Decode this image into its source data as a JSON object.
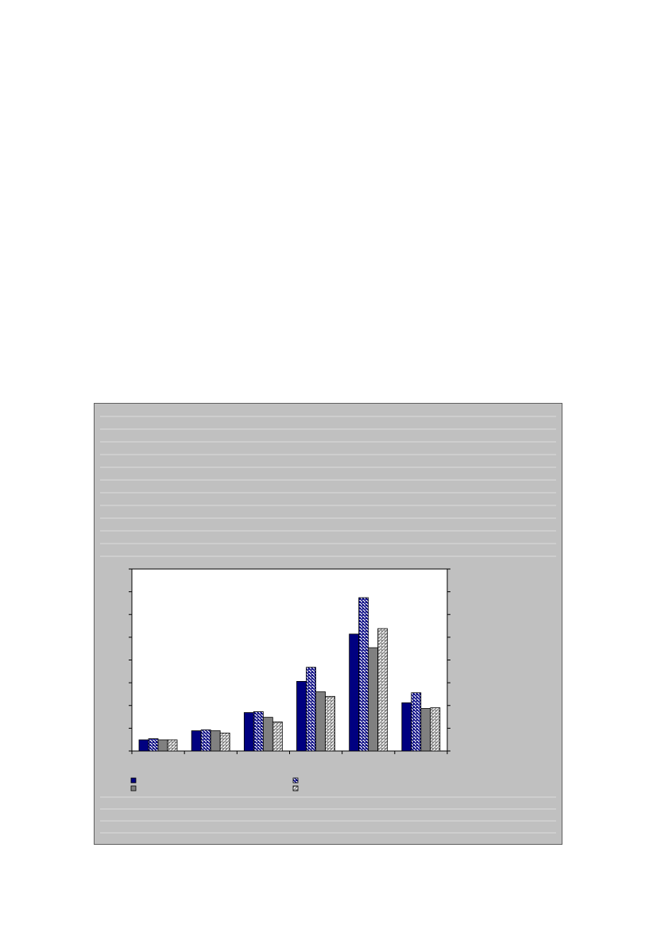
{
  "chart_data": {
    "type": "bar",
    "title": "",
    "xlabel": "",
    "ylabel": "",
    "categories": [
      "",
      "",
      "",
      "",
      "",
      ""
    ],
    "ylim": [
      0,
      8
    ],
    "grid": false,
    "legend_position": "bottom",
    "series": [
      {
        "values": [
          0.49,
          0.89,
          1.69,
          3.06,
          5.14,
          2.12
        ],
        "color": "#000080",
        "pattern": "solid"
      },
      {
        "values": [
          0.54,
          0.93,
          1.73,
          3.68,
          6.74,
          2.56
        ],
        "color": "#000080",
        "pattern": "diagonal-hatch"
      },
      {
        "values": [
          0.49,
          0.89,
          1.48,
          2.6,
          4.54,
          1.87
        ],
        "color": "#808080",
        "pattern": "solid"
      },
      {
        "values": [
          0.49,
          0.79,
          1.28,
          2.4,
          5.38,
          1.9
        ],
        "color": "#808080",
        "pattern": "fine-hatch"
      }
    ],
    "background_color": "#c0c0c0",
    "plot_background": "#ffffff"
  }
}
